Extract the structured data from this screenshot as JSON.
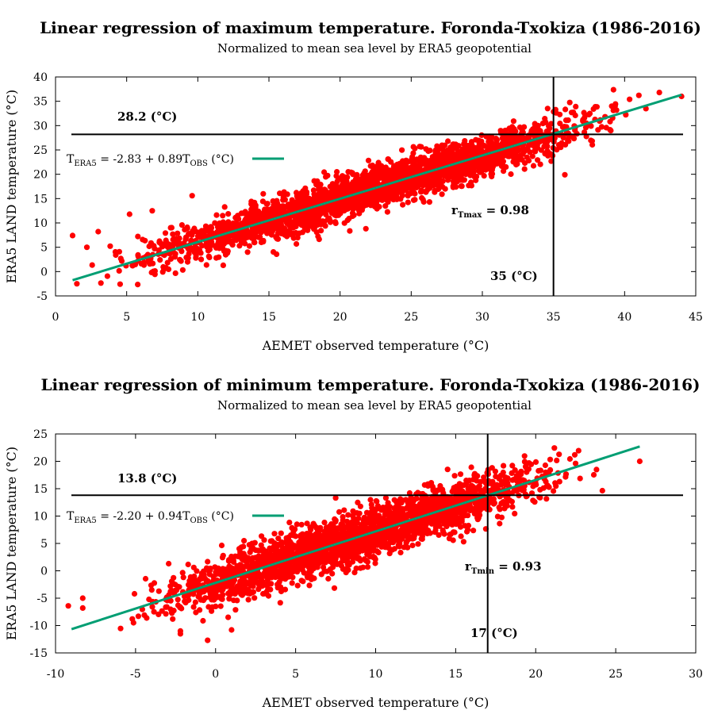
{
  "colors": {
    "points": "#ff0000",
    "fit": "#009e73",
    "refline": "#000000"
  },
  "chart_data": [
    {
      "type": "scatter",
      "title": "Linear regression of maximum temperature. Foronda-Txokiza (1986-2016)",
      "subtitle": "Normalized to mean sea level by ERA5 geopotential",
      "xlabel": "AEMET observed temperature (°C)",
      "ylabel": "ERA5 LAND temperature (°C)",
      "xlim": [
        0,
        45
      ],
      "ylim": [
        -5,
        40
      ],
      "xticks": [
        0,
        5,
        10,
        15,
        20,
        25,
        30,
        35,
        40,
        45
      ],
      "yticks": [
        -5,
        0,
        5,
        10,
        15,
        20,
        25,
        30,
        35,
        40
      ],
      "fit": {
        "intercept": -2.83,
        "slope": 0.89,
        "x_range": [
          1.2,
          44
        ]
      },
      "legend": {
        "lead": "T",
        "lead_sub": "ERA5",
        "mid": " = -2.83 + 0.89T",
        "mid_sub": "OBS",
        "tail": " (°C)"
      },
      "hline": {
        "value": 28.2,
        "label": "28.2 (°C)"
      },
      "vline": {
        "value": 35,
        "label": "35 (°C)"
      },
      "correlation": {
        "lead": "r",
        "sub": "Tmax",
        "tail": " = 0.98"
      },
      "point_cloud": {
        "x_range": [
          1.5,
          43
        ],
        "spread": 2.2,
        "count": 2600
      },
      "outliers": [
        [
          1.2,
          7.4
        ],
        [
          44,
          36
        ],
        [
          1.5,
          -2.5
        ],
        [
          3.0,
          8.2
        ],
        [
          5.2,
          11.8
        ],
        [
          6.8,
          12.5
        ],
        [
          9.6,
          15.6
        ],
        [
          35.8,
          19.9
        ],
        [
          13.5,
          4.0
        ],
        [
          41.5,
          33.5
        ],
        [
          2.2,
          5.0
        ],
        [
          24.2,
          22.2
        ]
      ]
    },
    {
      "type": "scatter",
      "title": "Linear regression of minimum temperature. Foronda-Txokiza (1986-2016)",
      "subtitle": "Normalized to mean sea level by ERA5 geopotential",
      "xlabel": "AEMET observed temperature (°C)",
      "ylabel": "ERA5 LAND temperature (°C)",
      "xlim": [
        -10,
        30
      ],
      "ylim": [
        -15,
        25
      ],
      "xticks": [
        -10,
        -5,
        0,
        5,
        10,
        15,
        20,
        25,
        30
      ],
      "yticks": [
        -15,
        -10,
        -5,
        0,
        5,
        10,
        15,
        20,
        25
      ],
      "fit": {
        "intercept": -2.2,
        "slope": 0.94,
        "x_range": [
          -9,
          26.5
        ]
      },
      "legend": {
        "lead": "T",
        "lead_sub": "ERA5",
        "mid": " = -2.20 + 0.94T",
        "mid_sub": "OBS",
        "tail": " (°C)"
      },
      "hline": {
        "value": 13.8,
        "label": "13.8 (°C)"
      },
      "vline": {
        "value": 17,
        "label": "17 (°C)"
      },
      "correlation": {
        "lead": "r",
        "sub": "Tmin",
        "tail": " = 0.93"
      },
      "point_cloud": {
        "x_range": [
          -7,
          24.5
        ],
        "spread": 2.3,
        "count": 2400
      },
      "outliers": [
        [
          -9.2,
          -6.4
        ],
        [
          -8.3,
          -5.0
        ],
        [
          -8.3,
          -6.8
        ],
        [
          -5.2,
          -8.8
        ],
        [
          -2.2,
          -11.0
        ],
        [
          -2.2,
          -11.5
        ],
        [
          -0.5,
          -12.7
        ],
        [
          1.0,
          -10.8
        ],
        [
          26.5,
          20.0
        ],
        [
          7.5,
          13.3
        ],
        [
          0.0,
          -6.5
        ],
        [
          23.8,
          18.5
        ]
      ]
    }
  ]
}
